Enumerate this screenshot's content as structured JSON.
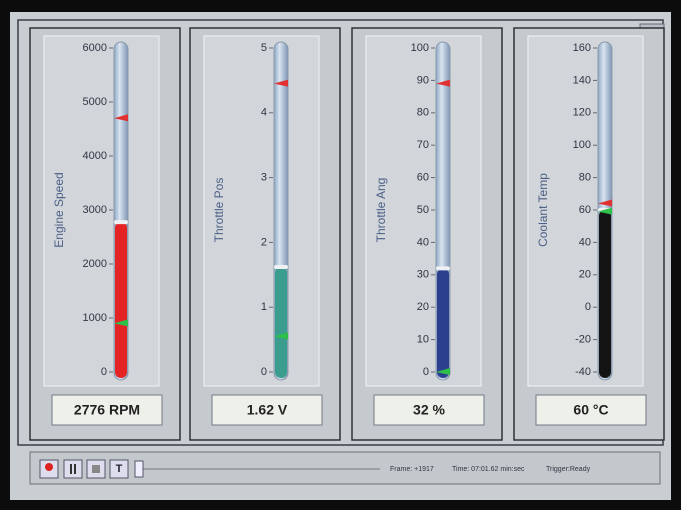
{
  "gauges": [
    {
      "label": "Engine Speed",
      "lim": [
        0,
        6000
      ],
      "ticks": [
        0,
        1000,
        2000,
        3000,
        4000,
        5000,
        6000
      ],
      "value": 2776,
      "readout": "2776 RPM",
      "color": "#e42424",
      "high_mark": 4700,
      "low_mark": 900
    },
    {
      "label": "Throttle Pos",
      "lim": [
        0,
        5
      ],
      "ticks": [
        0,
        1,
        2,
        3,
        4,
        5
      ],
      "value": 1.62,
      "readout": "1.62 V",
      "color": "#3a9d8e",
      "high_mark": 4.45,
      "low_mark": 0.55
    },
    {
      "label": "Throttle Ang",
      "lim": [
        0,
        100
      ],
      "ticks": [
        0,
        10,
        20,
        30,
        40,
        50,
        60,
        70,
        80,
        90,
        100
      ],
      "value": 32,
      "readout": "32 %",
      "color": "#2c3f8f",
      "high_mark": 89,
      "low_mark": 0
    },
    {
      "label": "Coolant Temp",
      "lim": [
        -40,
        160
      ],
      "ticks": [
        -40,
        -20,
        0,
        20,
        40,
        60,
        80,
        100,
        120,
        140,
        160
      ],
      "value": 60,
      "readout": "60 °C",
      "color": "#141414",
      "high_mark": 64,
      "low_mark": 59
    }
  ],
  "toolbar": {
    "stop_button": "T",
    "status": [
      "Frame: +1917",
      "Time: 07:01.62 min:sec",
      "Trigger:Ready"
    ]
  }
}
